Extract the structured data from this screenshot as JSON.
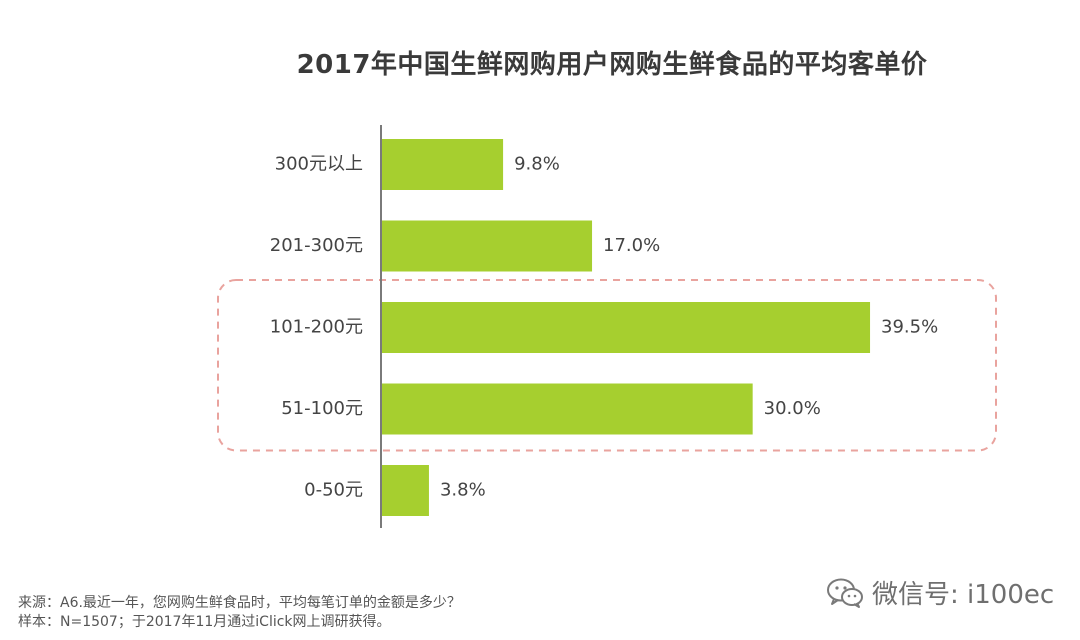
{
  "chart_data": {
    "type": "bar",
    "orientation": "horizontal",
    "title": "2017年中国生鲜网购用户网购生鲜食品的平均客单价",
    "categories": [
      "300元以上",
      "201-300元",
      "101-200元",
      "51-100元",
      "0-50元"
    ],
    "values": [
      9.8,
      17.0,
      39.5,
      30.0,
      3.8
    ],
    "value_labels": [
      "9.8%",
      "17.0%",
      "39.5%",
      "30.0%",
      "3.8%"
    ],
    "unit": "%",
    "xlim": [
      0,
      45
    ],
    "grid": false,
    "legend": "none",
    "bar_color": "#a6cf2f",
    "highlight": {
      "categories": [
        "101-200元",
        "51-100元"
      ],
      "style": "dashed-rounded-box",
      "color": "#e9a39e"
    }
  },
  "footer": {
    "source": "来源：A6.最近一年，您网购生鲜食品时，平均每笔订单的金额是多少？",
    "sample": "样本：N=1507；于2017年11月通过iClick网上调研获得。"
  },
  "watermark": {
    "text": "微信号: i100ec",
    "icon": "wechat-icon"
  }
}
